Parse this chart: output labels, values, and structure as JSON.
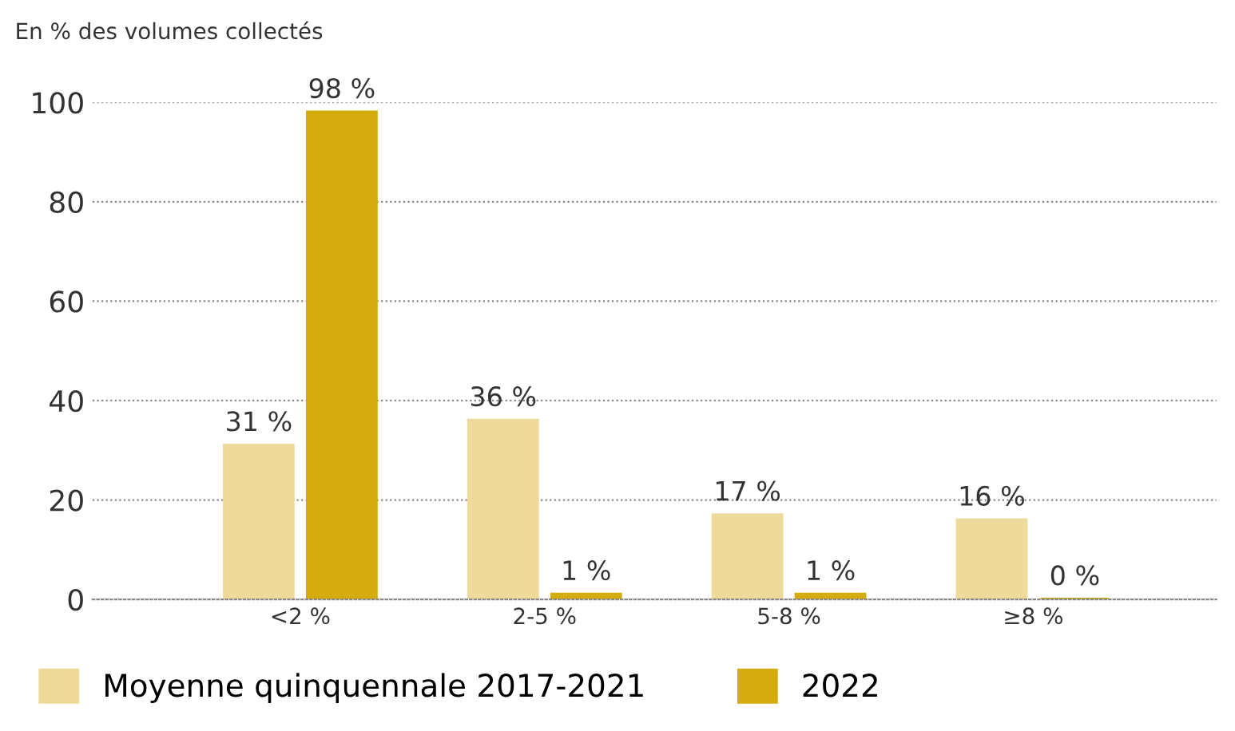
{
  "chart_data": {
    "type": "bar",
    "ylabel": "En % des volumes collectés",
    "categories": [
      "<2 %",
      "2-5 %",
      "5-8 %",
      "≥8 %"
    ],
    "series": [
      {
        "name": "Moyenne quinquennale 2017-2021",
        "color": "#eedb9c",
        "values": [
          31,
          36,
          17,
          16
        ],
        "value_labels": [
          "31 %",
          "36 %",
          "17 %",
          "16 %"
        ]
      },
      {
        "name": "2022",
        "color": "#d4ac0d",
        "values": [
          98,
          1,
          1,
          0
        ],
        "value_labels": [
          "98 %",
          "1 %",
          "1 %",
          "0 %"
        ]
      }
    ],
    "ylim": [
      0,
      100
    ],
    "yticks": [
      0,
      20,
      40,
      60,
      80,
      100
    ],
    "grid": "y",
    "legend": "bottom"
  }
}
